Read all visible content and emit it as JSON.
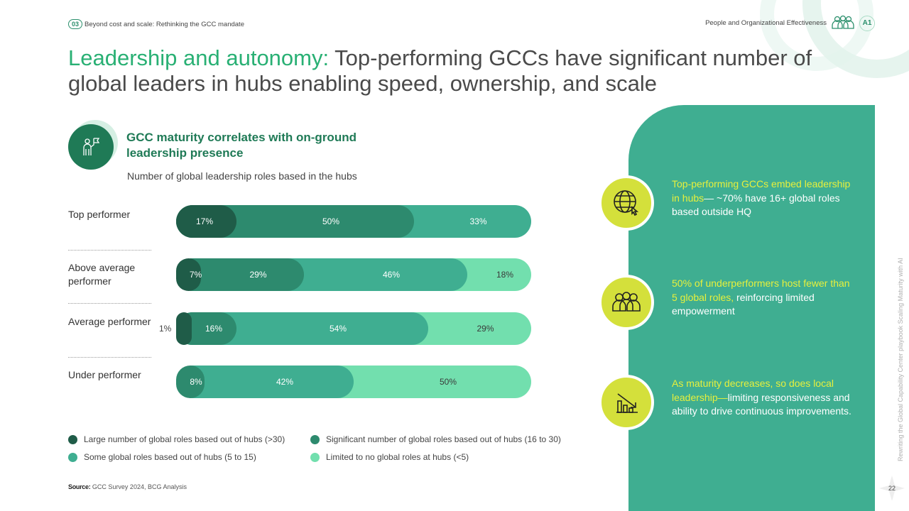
{
  "header": {
    "section_number": "03",
    "section_title": "Beyond cost and scale: Rethinking the GCC mandate",
    "category": "People and Organizational Effectiveness",
    "tag": "A1"
  },
  "title": {
    "highlight": "Leadership and autonomy:",
    "rest": " Top-performing GCCs have significant number of global leaders in hubs enabling speed, ownership, and scale"
  },
  "subhead": "GCC maturity correlates with on-ground leadership presence",
  "chart_caption": "Number of global leadership roles based in the hubs",
  "chart_data": {
    "type": "bar",
    "orientation": "horizontal-stacked",
    "unit": "%",
    "categories": [
      "Top performer",
      "Above average performer",
      "Average performer",
      "Under performer"
    ],
    "series": [
      {
        "name": "Large number of global roles based out of hubs (>30)",
        "color": "#1f5c48",
        "values": [
          17,
          7,
          1,
          0
        ]
      },
      {
        "name": "Significant number of global roles based out of hubs (16 to 30)",
        "color": "#2d8a6e",
        "values": [
          50,
          29,
          16,
          8
        ]
      },
      {
        "name": "Some global roles based out of hubs (5 to 15)",
        "color": "#3fae91",
        "values": [
          33,
          46,
          54,
          42
        ]
      },
      {
        "name": "Limited to no global roles at hubs (<5)",
        "color": "#72dfae",
        "values": [
          0,
          18,
          29,
          50
        ]
      }
    ],
    "labels": [
      [
        "17%",
        "50%",
        "33%",
        ""
      ],
      [
        "7%",
        "29%",
        "46%",
        "18%"
      ],
      [
        "1%",
        "16%",
        "54%",
        "29%"
      ],
      [
        "",
        "8%",
        "42%",
        "50%"
      ]
    ],
    "legend_position": "bottom"
  },
  "source": {
    "label": "Source:",
    "text": " GCC Survey 2024, BCG Analysis"
  },
  "insights": [
    {
      "icon": "globe-cursor-icon",
      "highlight": "Top-performing GCCs embed leadership in hubs",
      "text": "— ~70% have 16+ global roles based outside HQ"
    },
    {
      "icon": "people-group-icon",
      "highlight": "50% of underperformers host fewer than 5 global roles,",
      "text": " reinforcing limited empowerment"
    },
    {
      "icon": "declining-chart-icon",
      "highlight": "As maturity decreases, so does local leadership—",
      "text": "limiting responsiveness and ability to drive continuous improvements."
    }
  ],
  "side_text": "Rewriting the Global Capability Center playbook Scaling Maturity with AI",
  "page_number": "22",
  "colors": {
    "accent": "#29b074",
    "panel": "#3fae91",
    "highlight": "#e7f03c",
    "dark": "#1f7a56"
  }
}
